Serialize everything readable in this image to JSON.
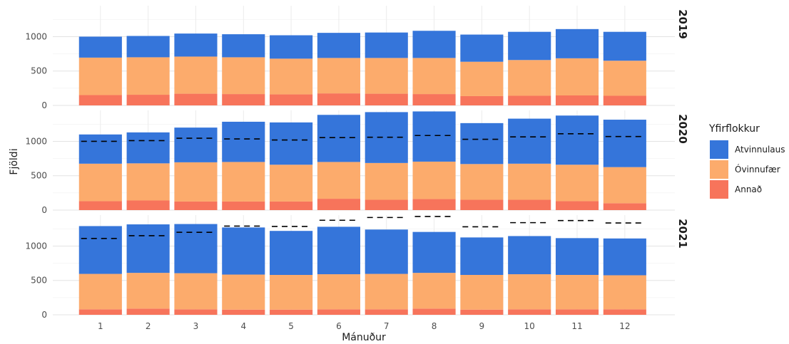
{
  "chart_data": {
    "type": "bar",
    "stacked": true,
    "facet_by": "year",
    "xlabel": "Mánuður",
    "ylabel": "Fjöldi",
    "categories": [
      "1",
      "2",
      "3",
      "4",
      "5",
      "6",
      "7",
      "8",
      "9",
      "10",
      "11",
      "12"
    ],
    "ylim": [
      0,
      1450
    ],
    "yticks": [
      0,
      500,
      1000
    ],
    "grid": true,
    "legend": {
      "title": "Yfirflokkur",
      "position": "right",
      "entries": [
        {
          "label": "Atvinnulaus",
          "color": "#3575DA"
        },
        {
          "label": "Óvinnufær",
          "color": "#FCAB6C"
        },
        {
          "label": "Annað",
          "color": "#F7745B"
        }
      ]
    },
    "panels": [
      {
        "label": "2019",
        "series": [
          {
            "name": "Annað",
            "values": [
              150,
              155,
              170,
              165,
              160,
              175,
              170,
              165,
              135,
              140,
              145,
              140
            ]
          },
          {
            "name": "Óvinnufær",
            "values": [
              545,
              545,
              540,
              535,
              520,
              515,
              520,
              525,
              500,
              520,
              540,
              510
            ]
          },
          {
            "name": "Atvinnulaus",
            "values": [
              305,
              310,
              335,
              335,
              340,
              365,
              370,
              395,
              395,
              410,
              425,
              420
            ]
          }
        ],
        "reference": []
      },
      {
        "label": "2020",
        "series": [
          {
            "name": "Annað",
            "values": [
              130,
              140,
              125,
              125,
              125,
              165,
              150,
              160,
              150,
              150,
              130,
              100
            ]
          },
          {
            "name": "Óvinnufær",
            "values": [
              545,
              540,
              570,
              575,
              535,
              535,
              535,
              545,
              520,
              525,
              530,
              525
            ]
          },
          {
            "name": "Atvinnulaus",
            "values": [
              425,
              450,
              505,
              585,
              615,
              685,
              740,
              730,
              595,
              655,
              715,
              690
            ]
          }
        ],
        "reference": [
          1000,
          1010,
          1045,
          1035,
          1020,
          1055,
          1060,
          1085,
          1030,
          1065,
          1110,
          1070
        ]
      },
      {
        "label": "2021",
        "series": [
          {
            "name": "Annað",
            "values": [
              80,
              90,
              80,
              75,
              75,
              80,
              80,
              90,
              75,
              80,
              80,
              80
            ]
          },
          {
            "name": "Óvinnufær",
            "values": [
              515,
              520,
              525,
              510,
              505,
              510,
              515,
              520,
              505,
              510,
              500,
              495
            ]
          },
          {
            "name": "Atvinnulaus",
            "values": [
              695,
              705,
              715,
              685,
              640,
              690,
              645,
              595,
              545,
              555,
              535,
              535
            ]
          }
        ],
        "reference": [
          1110,
          1150,
          1200,
          1290,
          1285,
          1375,
          1415,
          1430,
          1280,
          1340,
          1370,
          1335
        ]
      }
    ]
  }
}
